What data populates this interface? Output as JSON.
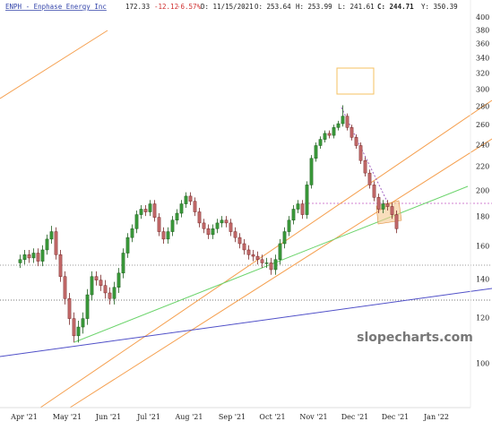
{
  "chart_data": {
    "type": "candlestick",
    "title": "ENPH - Enphase Energy Inc",
    "header": [
      "172.33",
      "-12.12",
      "-6.57%",
      "D: 11/15/2021",
      "O: 253.64",
      "H: 253.99",
      "L: 241.61",
      "C: 244.71",
      "Y: 350.39"
    ],
    "watermark": "slopecharts.com",
    "categories": [
      null,
      null,
      null,
      null,
      null,
      null,
      null,
      null,
      null,
      null,
      null,
      null,
      null,
      null,
      null,
      null,
      null,
      null,
      null,
      null,
      null,
      null,
      null,
      null,
      null,
      null,
      null,
      null,
      null,
      null,
      null,
      null,
      null,
      null,
      null,
      null,
      null,
      null,
      null,
      null,
      null,
      null,
      null,
      null,
      null,
      null,
      null,
      null,
      null,
      null,
      null,
      null,
      null,
      null,
      null,
      null,
      null,
      null,
      null,
      null,
      null,
      null,
      null,
      null,
      null,
      null,
      null,
      null,
      null,
      null,
      null,
      null,
      null,
      null,
      null,
      null,
      null,
      null,
      null,
      null,
      null,
      null,
      null,
      null,
      null
    ],
    "open": [
      150,
      152,
      155,
      153,
      156,
      151,
      158,
      165,
      170,
      155,
      142,
      130,
      120,
      112,
      116,
      120,
      132,
      142,
      140,
      137,
      133,
      130,
      136,
      144,
      156,
      166,
      172,
      182,
      186,
      184,
      190,
      180,
      170,
      165,
      170,
      178,
      183,
      190,
      196,
      192,
      184,
      176,
      172,
      168,
      172,
      176,
      178,
      176,
      170,
      166,
      162,
      158,
      155,
      154,
      152,
      150,
      150,
      146,
      152,
      162,
      170,
      178,
      186,
      190,
      182,
      205,
      228,
      240,
      246,
      252,
      250,
      258,
      262,
      270,
      258,
      248,
      240,
      226,
      215,
      205,
      195,
      186,
      190,
      188,
      182
    ],
    "high": [
      155,
      158,
      158,
      159,
      159,
      161,
      168,
      174,
      173,
      158,
      145,
      133,
      123,
      119,
      123,
      135,
      145,
      145,
      143,
      140,
      136,
      139,
      147,
      159,
      169,
      175,
      185,
      189,
      189,
      193,
      193,
      183,
      173,
      173,
      181,
      186,
      193,
      199,
      199,
      195,
      187,
      179,
      175,
      175,
      179,
      181,
      181,
      179,
      173,
      169,
      165,
      161,
      158,
      157,
      155,
      153,
      153,
      155,
      165,
      173,
      181,
      189,
      193,
      193,
      208,
      231,
      243,
      249,
      255,
      255,
      261,
      265,
      282,
      273,
      261,
      251,
      243,
      229,
      218,
      208,
      198,
      193,
      193,
      191,
      185
    ],
    "low": [
      147,
      149,
      150,
      150,
      148,
      148,
      155,
      162,
      152,
      139,
      127,
      117,
      109,
      109,
      113,
      117,
      129,
      137,
      134,
      130,
      127,
      127,
      133,
      141,
      153,
      163,
      169,
      179,
      181,
      181,
      177,
      167,
      162,
      162,
      167,
      175,
      180,
      187,
      189,
      181,
      173,
      169,
      165,
      165,
      169,
      173,
      173,
      167,
      163,
      159,
      155,
      152,
      151,
      149,
      147,
      147,
      143,
      143,
      149,
      159,
      167,
      175,
      183,
      179,
      179,
      202,
      225,
      237,
      243,
      247,
      247,
      255,
      259,
      255,
      245,
      237,
      223,
      212,
      202,
      192,
      183,
      183,
      185,
      179,
      169
    ],
    "close": [
      152,
      155,
      153,
      156,
      151,
      158,
      165,
      170,
      155,
      142,
      130,
      120,
      112,
      116,
      120,
      132,
      142,
      140,
      137,
      133,
      130,
      136,
      144,
      156,
      166,
      172,
      182,
      186,
      184,
      190,
      180,
      170,
      165,
      170,
      178,
      183,
      190,
      196,
      192,
      184,
      176,
      172,
      168,
      172,
      176,
      178,
      176,
      170,
      166,
      162,
      158,
      155,
      154,
      152,
      150,
      150,
      146,
      152,
      162,
      170,
      178,
      186,
      190,
      182,
      205,
      228,
      240,
      246,
      252,
      250,
      258,
      262,
      270,
      258,
      248,
      240,
      226,
      215,
      205,
      195,
      186,
      190,
      188,
      182,
      172
    ],
    "up_color": "#3a9a3a",
    "down_color": "#c46a6a",
    "log_scale": true,
    "ylim": [
      84,
      430
    ],
    "yticks": [
      100,
      120,
      140,
      160,
      180,
      200,
      220,
      240,
      260,
      280,
      300,
      320,
      340,
      360,
      380,
      400
    ],
    "xlim": [
      -4.5,
      100.5
    ],
    "xticks": [
      {
        "value": 0.9,
        "label": "Apr '21"
      },
      {
        "value": 10.5,
        "label": "May '21"
      },
      {
        "value": 19.7,
        "label": "Jun '21"
      },
      {
        "value": 28.7,
        "label": "Jul '21"
      },
      {
        "value": 37.7,
        "label": "Aug '21"
      },
      {
        "value": 47.3,
        "label": "Sep '21"
      },
      {
        "value": 56.3,
        "label": "Oct '21"
      },
      {
        "value": 65.5,
        "label": "Nov '21"
      },
      {
        "value": 74.7,
        "label": "Dec '21"
      },
      {
        "value": 83.7,
        "label": "Dec '21"
      },
      {
        "value": 92.9,
        "label": "Jan '22"
      }
    ],
    "grid": false
  }
}
